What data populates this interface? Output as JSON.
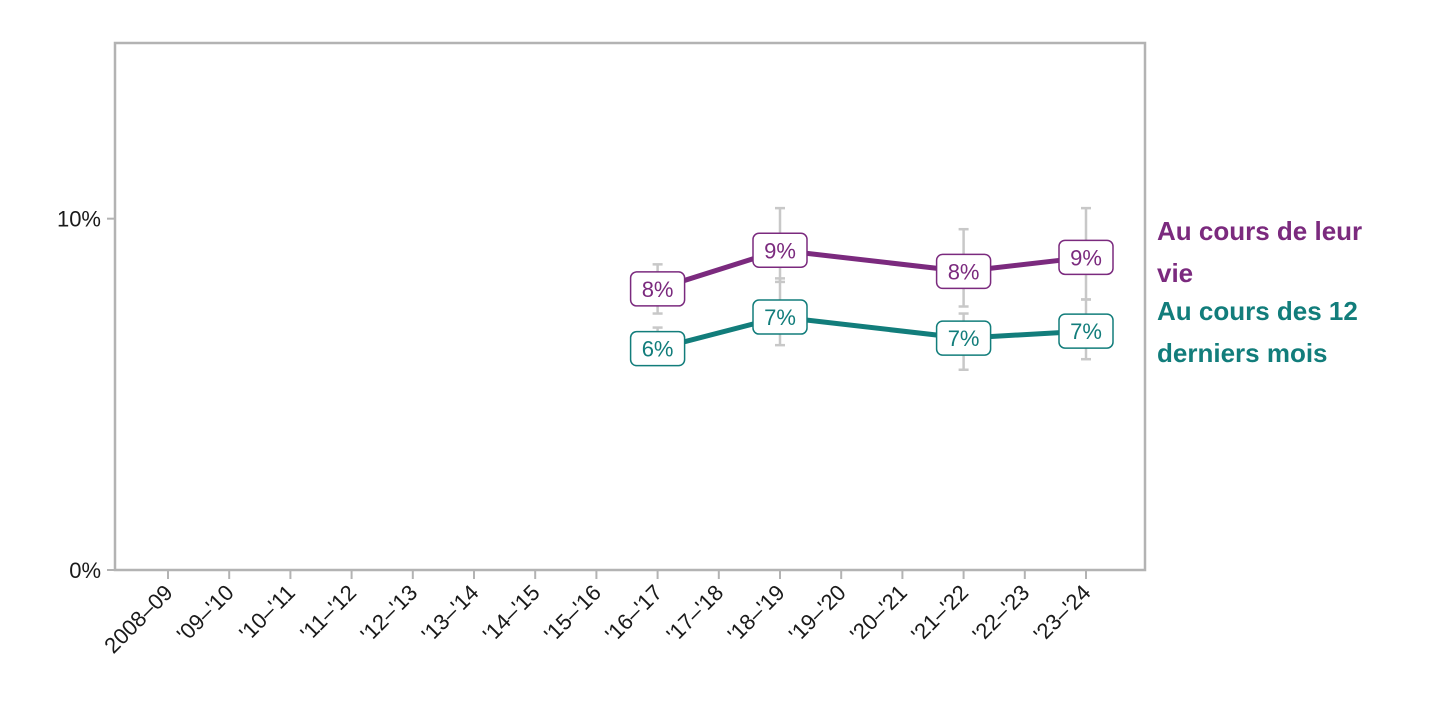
{
  "chart_data": {
    "type": "line",
    "categories": [
      "2008–09",
      "'09–'10",
      "'10–'11",
      "'11–'12",
      "'12–'13",
      "'13–'14",
      "'14–'15",
      "'15–'16",
      "'16–'17",
      "'17–'18",
      "'18–'19",
      "'19–'20",
      "'20–'21",
      "'21–'22",
      "'22–'23",
      "'23–'24"
    ],
    "ylim": [
      0,
      15
    ],
    "yticks": [
      {
        "value": 0,
        "label": "0%"
      },
      {
        "value": 10,
        "label": "10%"
      }
    ],
    "series": [
      {
        "name": "Au cours de leur vie",
        "color": "#7b2a7e",
        "points": [
          {
            "category": "'16–'17",
            "value": 8.0,
            "label": "8%",
            "err_low": 7.3,
            "err_high": 8.7
          },
          {
            "category": "'18–'19",
            "value": 9.1,
            "label": "9%",
            "err_low": 8.2,
            "err_high": 10.3
          },
          {
            "category": "'21–'22",
            "value": 8.5,
            "label": "8%",
            "err_low": 7.5,
            "err_high": 9.7
          },
          {
            "category": "'23–'24",
            "value": 8.9,
            "label": "9%",
            "err_low": 7.7,
            "err_high": 10.3
          }
        ]
      },
      {
        "name": "Au cours des 12 derniers mois",
        "color": "#127d7b",
        "points": [
          {
            "category": "'16–'17",
            "value": 6.3,
            "label": "6%",
            "err_low": 5.9,
            "err_high": 6.9
          },
          {
            "category": "'18–'19",
            "value": 7.2,
            "label": "7%",
            "err_low": 6.4,
            "err_high": 8.3
          },
          {
            "category": "'21–'22",
            "value": 6.6,
            "label": "7%",
            "err_low": 5.7,
            "err_high": 7.3
          },
          {
            "category": "'23–'24",
            "value": 6.8,
            "label": "7%",
            "err_low": 6.0,
            "err_high": 7.7
          }
        ]
      }
    ],
    "legend": {
      "placement": "right",
      "entries": [
        {
          "lines": [
            "Au cours de leur",
            "vie"
          ],
          "color": "#7b2a7e"
        },
        {
          "lines": [
            "Au cours des 12",
            "derniers mois"
          ],
          "color": "#127d7b"
        }
      ]
    }
  }
}
